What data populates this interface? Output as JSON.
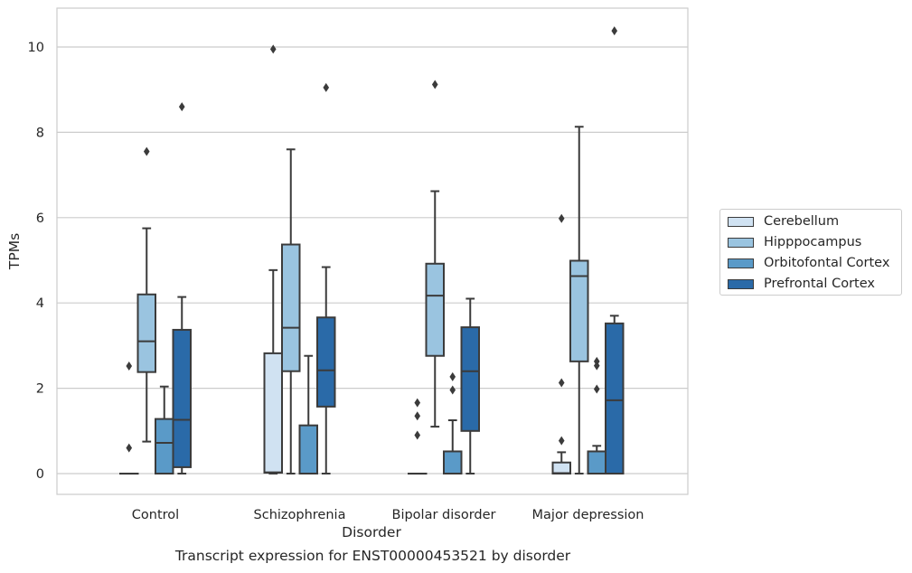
{
  "caption": "Transcript expression for ENST00000453521 by disorder",
  "chart_data": {
    "type": "boxplot",
    "xlabel": "Disorder",
    "ylabel": "TPMs",
    "ylim": [
      -0.5,
      10.9
    ],
    "yticks": [
      0,
      2,
      4,
      6,
      8,
      10
    ],
    "grid": "horizontal",
    "legend_position": "right",
    "categories": [
      "Control",
      "Schizophrenia",
      "Bipolar disorder",
      "Major depression"
    ],
    "series": [
      {
        "name": "Cerebellum",
        "color": "#d0e2f2",
        "boxes": [
          {
            "whislo": 0,
            "q1": 0,
            "med": 0,
            "q3": 0,
            "whishi": 0,
            "fliers": [
              0.6,
              2.52
            ]
          },
          {
            "whislo": 0,
            "q1": 0.02,
            "med": 0.03,
            "q3": 2.82,
            "whishi": 4.77,
            "fliers": [
              9.95
            ]
          },
          {
            "whislo": 0,
            "q1": 0,
            "med": 0,
            "q3": 0,
            "whishi": 0,
            "fliers": [
              0.9,
              1.35,
              1.66
            ]
          },
          {
            "whislo": 0,
            "q1": 0,
            "med": 0.01,
            "q3": 0.26,
            "whishi": 0.5,
            "fliers": [
              0.77,
              2.13,
              5.98
            ]
          }
        ]
      },
      {
        "name": "Hipppocampus",
        "color": "#9ac4e0",
        "boxes": [
          {
            "whislo": 0.75,
            "q1": 2.38,
            "med": 3.1,
            "q3": 4.2,
            "whishi": 5.75,
            "fliers": [
              7.55
            ]
          },
          {
            "whislo": 0,
            "q1": 2.4,
            "med": 3.42,
            "q3": 5.37,
            "whishi": 7.6,
            "fliers": []
          },
          {
            "whislo": 1.1,
            "q1": 2.76,
            "med": 4.17,
            "q3": 4.92,
            "whishi": 6.62,
            "fliers": [
              9.12
            ]
          },
          {
            "whislo": 0,
            "q1": 2.63,
            "med": 4.63,
            "q3": 4.99,
            "whishi": 8.13,
            "fliers": []
          }
        ]
      },
      {
        "name": "Orbitofontal Cortex",
        "color": "#5a9ac8",
        "boxes": [
          {
            "whislo": 0,
            "q1": 0,
            "med": 0.72,
            "q3": 1.28,
            "whishi": 2.04,
            "fliers": []
          },
          {
            "whislo": 0,
            "q1": 0,
            "med": 0,
            "q3": 1.13,
            "whishi": 2.76,
            "fliers": []
          },
          {
            "whislo": 0,
            "q1": 0,
            "med": 0,
            "q3": 0.52,
            "whishi": 1.25,
            "fliers": [
              1.96,
              2.27
            ]
          },
          {
            "whislo": 0,
            "q1": 0,
            "med": 0,
            "q3": 0.52,
            "whishi": 0.65,
            "fliers": [
              1.98,
              2.53,
              2.63
            ]
          }
        ]
      },
      {
        "name": "Prefrontal Cortex",
        "color": "#2a6aa8",
        "boxes": [
          {
            "whislo": 0,
            "q1": 0.15,
            "med": 1.26,
            "q3": 3.37,
            "whishi": 4.14,
            "fliers": [
              8.6
            ]
          },
          {
            "whislo": 0,
            "q1": 1.57,
            "med": 2.42,
            "q3": 3.66,
            "whishi": 4.84,
            "fliers": [
              9.05
            ]
          },
          {
            "whislo": 0,
            "q1": 1.0,
            "med": 2.4,
            "q3": 3.43,
            "whishi": 4.1,
            "fliers": []
          },
          {
            "whislo": 0,
            "q1": 0,
            "med": 1.72,
            "q3": 3.52,
            "whishi": 3.7,
            "fliers": [
              10.38
            ]
          }
        ]
      }
    ]
  }
}
